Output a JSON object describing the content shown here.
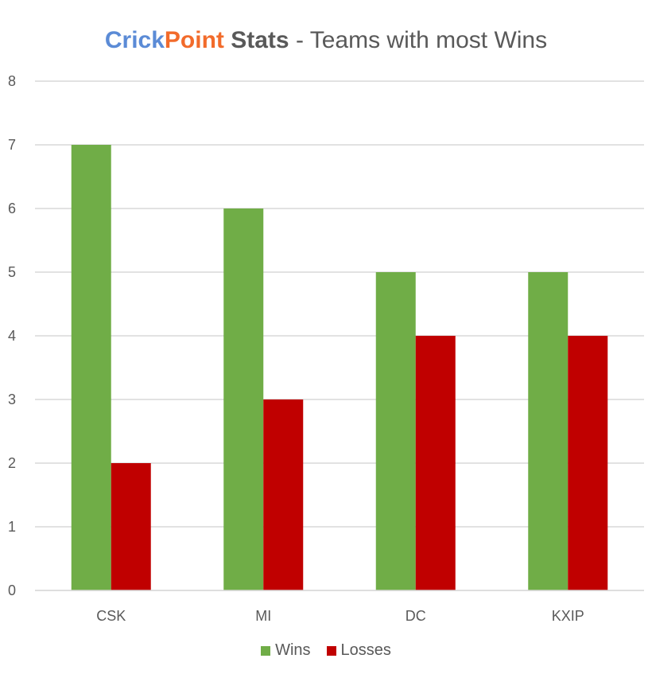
{
  "title": {
    "brand_part1": "Crick",
    "brand_part2": "Point",
    "stats_word": "Stats",
    "rest": " - Teams with most Wins",
    "brand_part1_color": "#5b8bd6",
    "brand_part2_color": "#f26b2b",
    "rest_color": "#595959"
  },
  "chart_data": {
    "type": "bar",
    "title": "CrickPoint Stats - Teams with most Wins",
    "xlabel": "",
    "ylabel": "",
    "categories": [
      "CSK",
      "MI",
      "DC",
      "KXIP"
    ],
    "series": [
      {
        "name": "Wins",
        "values": [
          7,
          6,
          5,
          5
        ],
        "color": "#70ad47"
      },
      {
        "name": "Losses",
        "values": [
          2,
          3,
          4,
          4
        ],
        "color": "#c00000"
      }
    ],
    "ylim": [
      0,
      8
    ],
    "yticks": [
      0,
      1,
      2,
      3,
      4,
      5,
      6,
      7,
      8
    ],
    "grid": true,
    "legend_position": "bottom",
    "gridline_color": "#d9d9d9",
    "tick_color": "#595959"
  }
}
